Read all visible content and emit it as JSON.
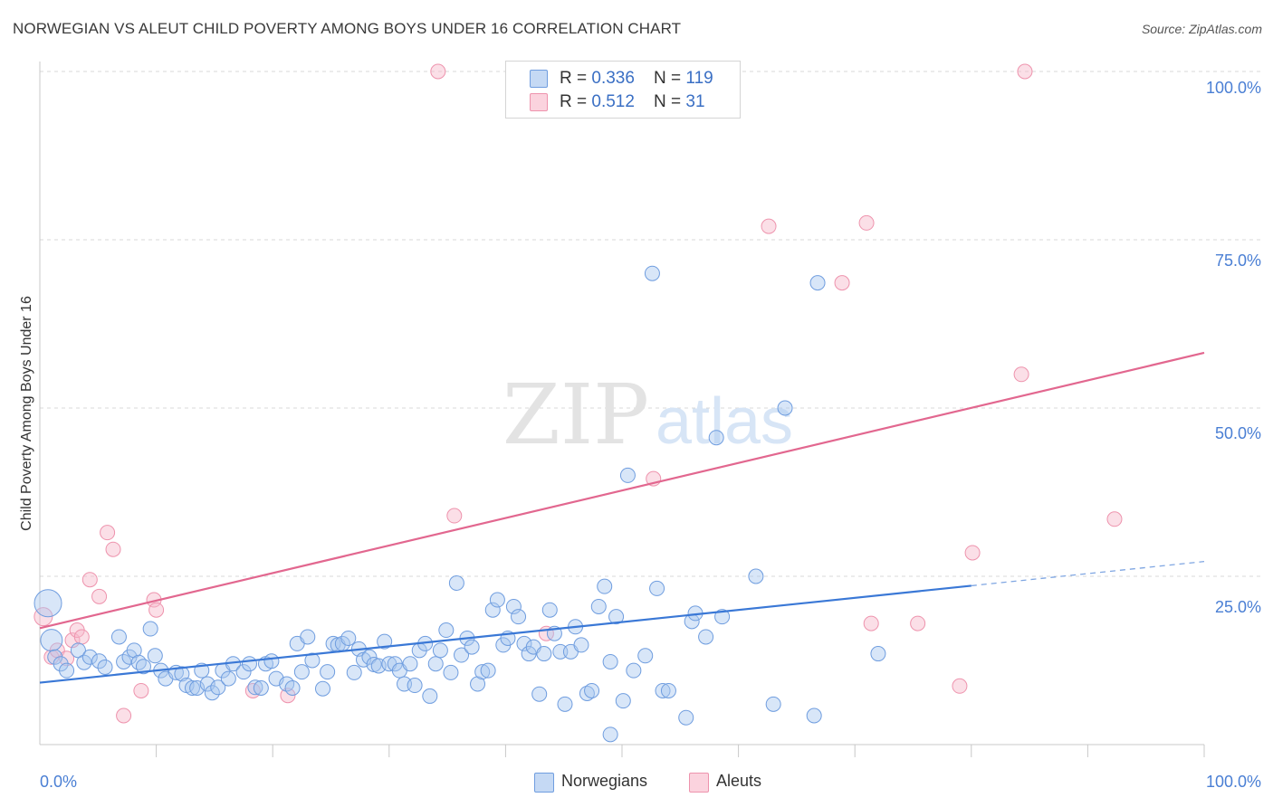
{
  "title": "NORWEGIAN VS ALEUT CHILD POVERTY AMONG BOYS UNDER 16 CORRELATION CHART",
  "source": "Source: ZipAtlas.com",
  "watermark": {
    "zip": "ZIP",
    "atlas": "atlas"
  },
  "legend_top": [
    {
      "r_label": "R = ",
      "r_value": "0.336",
      "n_label": "N = ",
      "n_value": "119",
      "color": "#a9c7ef"
    },
    {
      "r_label": "R = ",
      "r_value": "0.512",
      "n_label": "N = ",
      "n_value": "31",
      "color": "#f6b8c9"
    }
  ],
  "legend_bottom": [
    {
      "label": "Norwegians",
      "color": "#a9c7ef"
    },
    {
      "label": "Aleuts",
      "color": "#f6b8c9"
    }
  ],
  "chart_data": {
    "type": "scatter",
    "title": "NORWEGIAN VS ALEUT CHILD POVERTY AMONG BOYS UNDER 16 CORRELATION CHART",
    "xlabel": "",
    "ylabel": "Child Poverty Among Boys Under 16",
    "xlim": [
      0,
      100
    ],
    "ylim": [
      0,
      100
    ],
    "x_tick_labels": [
      "0.0%",
      "100.0%"
    ],
    "y_tick_labels": [
      "25.0%",
      "50.0%",
      "75.0%",
      "100.0%"
    ],
    "y_ticks": [
      25,
      50,
      75,
      100
    ],
    "grid": true,
    "legend_position": "top-center",
    "colors": {
      "norwegians": "#4a7fd4",
      "norwegians_fill": "#a9c7ef",
      "aleuts": "#e76a93",
      "aleuts_fill": "#f6b8c9"
    },
    "series": [
      {
        "name": "Norwegians",
        "r": 0.336,
        "n": 119,
        "trend": {
          "x0": 0,
          "y0": 9.2,
          "x1": 80,
          "y1": 23.6,
          "dashed_to_x": 100,
          "dashed_to_y": 27.2
        },
        "points": [
          [
            0.7,
            21.0
          ],
          [
            1.0,
            15.5
          ],
          [
            1.3,
            13.0
          ],
          [
            1.8,
            12.0
          ],
          [
            2.3,
            11.0
          ],
          [
            3.3,
            14.0
          ],
          [
            3.8,
            12.2
          ],
          [
            4.3,
            13.0
          ],
          [
            5.1,
            12.4
          ],
          [
            5.6,
            11.5
          ],
          [
            6.8,
            16.0
          ],
          [
            7.2,
            12.3
          ],
          [
            7.7,
            13.0
          ],
          [
            8.1,
            14.0
          ],
          [
            8.5,
            12.2
          ],
          [
            8.9,
            11.6
          ],
          [
            9.5,
            17.2
          ],
          [
            9.9,
            13.2
          ],
          [
            10.4,
            11.0
          ],
          [
            10.8,
            9.8
          ],
          [
            11.7,
            10.7
          ],
          [
            12.2,
            10.5
          ],
          [
            12.6,
            8.8
          ],
          [
            13.1,
            8.4
          ],
          [
            13.5,
            8.4
          ],
          [
            13.9,
            11.0
          ],
          [
            14.4,
            9.0
          ],
          [
            14.8,
            7.7
          ],
          [
            15.3,
            8.5
          ],
          [
            15.7,
            11.0
          ],
          [
            16.2,
            9.8
          ],
          [
            16.6,
            12.0
          ],
          [
            17.5,
            10.8
          ],
          [
            18.0,
            12.0
          ],
          [
            18.5,
            8.5
          ],
          [
            19.0,
            8.4
          ],
          [
            19.4,
            12.0
          ],
          [
            19.9,
            12.4
          ],
          [
            20.3,
            9.8
          ],
          [
            21.2,
            9.0
          ],
          [
            21.7,
            8.4
          ],
          [
            22.1,
            15.0
          ],
          [
            22.5,
            10.8
          ],
          [
            23.0,
            16.0
          ],
          [
            23.4,
            12.5
          ],
          [
            24.3,
            8.3
          ],
          [
            24.7,
            10.8
          ],
          [
            25.2,
            15.0
          ],
          [
            25.6,
            14.8
          ],
          [
            26.0,
            15.0
          ],
          [
            26.5,
            15.8
          ],
          [
            27.0,
            10.7
          ],
          [
            27.4,
            14.2
          ],
          [
            27.8,
            12.6
          ],
          [
            28.3,
            13.0
          ],
          [
            28.7,
            11.9
          ],
          [
            29.1,
            11.7
          ],
          [
            29.6,
            15.3
          ],
          [
            30.0,
            12.0
          ],
          [
            30.5,
            12.0
          ],
          [
            30.9,
            11.0
          ],
          [
            31.3,
            9.0
          ],
          [
            31.8,
            12.0
          ],
          [
            32.2,
            8.8
          ],
          [
            32.6,
            14.0
          ],
          [
            33.1,
            15.0
          ],
          [
            33.5,
            7.2
          ],
          [
            34.0,
            12.0
          ],
          [
            34.4,
            14.0
          ],
          [
            34.9,
            17.0
          ],
          [
            35.3,
            10.7
          ],
          [
            35.8,
            24.0
          ],
          [
            36.2,
            13.3
          ],
          [
            36.7,
            15.8
          ],
          [
            37.1,
            14.5
          ],
          [
            37.6,
            9.0
          ],
          [
            38.0,
            10.8
          ],
          [
            38.5,
            11.0
          ],
          [
            38.9,
            20.0
          ],
          [
            39.3,
            21.5
          ],
          [
            39.8,
            14.8
          ],
          [
            40.2,
            15.8
          ],
          [
            40.7,
            20.5
          ],
          [
            41.1,
            19.0
          ],
          [
            41.6,
            15.0
          ],
          [
            42.0,
            13.5
          ],
          [
            42.4,
            14.5
          ],
          [
            42.9,
            7.5
          ],
          [
            43.3,
            13.5
          ],
          [
            43.8,
            20.0
          ],
          [
            44.2,
            16.5
          ],
          [
            44.7,
            13.8
          ],
          [
            45.1,
            6.0
          ],
          [
            45.6,
            13.8
          ],
          [
            46.0,
            17.5
          ],
          [
            46.5,
            14.8
          ],
          [
            47.0,
            7.6
          ],
          [
            47.4,
            8.0
          ],
          [
            48.0,
            20.5
          ],
          [
            48.5,
            23.5
          ],
          [
            49.0,
            12.3
          ],
          [
            49.5,
            19.0
          ],
          [
            50.1,
            6.5
          ],
          [
            50.5,
            40.0
          ],
          [
            51.0,
            11.0
          ],
          [
            52.0,
            13.2
          ],
          [
            52.6,
            70.0
          ],
          [
            53.0,
            23.2
          ],
          [
            53.5,
            8.0
          ],
          [
            54.0,
            8.0
          ],
          [
            55.5,
            4.0
          ],
          [
            56.0,
            18.3
          ],
          [
            57.2,
            16.0
          ],
          [
            58.1,
            45.6
          ],
          [
            58.6,
            19.0
          ],
          [
            61.5,
            25.0
          ],
          [
            63.0,
            6.0
          ],
          [
            64.0,
            50.0
          ],
          [
            66.5,
            4.3
          ],
          [
            66.8,
            68.6
          ],
          [
            72.0,
            13.5
          ],
          [
            49.0,
            1.5
          ],
          [
            56.3,
            19.5
          ]
        ]
      },
      {
        "name": "Aleuts",
        "r": 0.512,
        "n": 31,
        "trend": {
          "x0": 0,
          "y0": 17.3,
          "x1": 100,
          "y1": 58.2
        },
        "points": [
          [
            0.3,
            19.0
          ],
          [
            1.0,
            13.0
          ],
          [
            1.5,
            14.0
          ],
          [
            2.3,
            12.8
          ],
          [
            2.8,
            15.5
          ],
          [
            3.2,
            17.0
          ],
          [
            3.6,
            16.0
          ],
          [
            4.3,
            24.5
          ],
          [
            5.1,
            22.0
          ],
          [
            5.8,
            31.5
          ],
          [
            6.3,
            29.0
          ],
          [
            7.2,
            4.3
          ],
          [
            8.7,
            8.0
          ],
          [
            9.8,
            21.5
          ],
          [
            10.0,
            20.0
          ],
          [
            18.3,
            8.0
          ],
          [
            21.3,
            7.3
          ],
          [
            34.2,
            100.0
          ],
          [
            35.6,
            34.0
          ],
          [
            43.5,
            16.5
          ],
          [
            52.7,
            39.5
          ],
          [
            62.6,
            77.0
          ],
          [
            68.9,
            68.6
          ],
          [
            71.0,
            77.5
          ],
          [
            71.4,
            18.0
          ],
          [
            75.4,
            18.0
          ],
          [
            79.0,
            8.7
          ],
          [
            80.1,
            28.5
          ],
          [
            84.3,
            55.0
          ],
          [
            84.6,
            100.0
          ],
          [
            92.3,
            33.5
          ]
        ]
      }
    ]
  }
}
